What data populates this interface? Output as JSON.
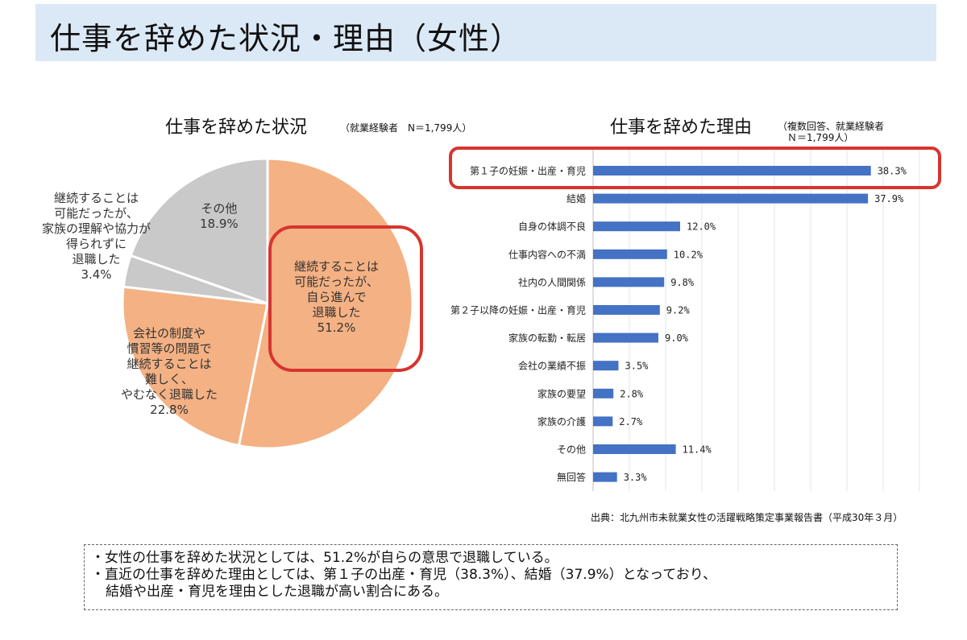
{
  "page_title": "仕事を辞めた状況・理由（女性）",
  "source": "出典：北九州市未就業女性の活躍戦略策定事業報告書（平成30年３月）",
  "summary": {
    "lines": [
      "・女性の仕事を辞めた状況としては、51.2%が自らの意思で退職している。",
      "・直近の仕事を辞めた理由としては、第１子の出産・育児（38.3%）、結婚（37.9%）となっており、",
      "結婚や出産・育児を理由とした退職が高い割合にある。"
    ]
  },
  "colors": {
    "header_bg": "#dbe8f5",
    "pie_orange": "#f4b183",
    "pie_gray": "#c9c9c9",
    "bar_blue": "#4472c4",
    "highlight_red": "#d63530"
  },
  "chart_data": [
    {
      "type": "pie",
      "title": "仕事を辞めた状況",
      "subtitle_lines": [
        "（就業経験者　N＝1,799人）"
      ],
      "slices": [
        {
          "label_lines": [
            "継続することは",
            "可能だったが、",
            "自ら進んで",
            "退職した",
            "51.2%"
          ],
          "value": 51.2,
          "color": "#f4b183"
        },
        {
          "label_lines": [
            "会社の制度や",
            "慣習等の問題で",
            "継続することは",
            "難しく、",
            "やむなく退職した",
            "22.8%"
          ],
          "value": 22.8,
          "color": "#f4b183"
        },
        {
          "label_lines": [
            "継続することは",
            "可能だったが、",
            "家族の理解や協力が",
            "得られずに",
            "退職した",
            "3.4%"
          ],
          "value": 3.4,
          "color": "#c9c9c9"
        },
        {
          "label_lines": [
            "その他",
            "18.9%"
          ],
          "value": 18.9,
          "color": "#c9c9c9"
        }
      ]
    },
    {
      "type": "bar",
      "orientation": "horizontal",
      "title": "仕事を辞めた理由",
      "subtitle_lines": [
        "（複数回答、就業経験者",
        "Ｎ＝1,799人）"
      ],
      "categories": [
        "第１子の妊娠・出産・育児",
        "結婚",
        "自身の体調不良",
        "仕事内容への不満",
        "社内の人間関係",
        "第２子以降の妊娠・出産・育児",
        "家族の転勤・転居",
        "会社の業績不振",
        "家族の要望",
        "家族の介護",
        "その他",
        "無回答"
      ],
      "values": [
        38.3,
        37.9,
        12.0,
        10.2,
        9.8,
        9.2,
        9.0,
        3.5,
        2.8,
        2.7,
        11.4,
        3.3
      ],
      "value_labels": [
        "38.3%",
        "37.9%",
        "12.0%",
        "10.2%",
        "9.8%",
        "9.2%",
        "9.0%",
        "3.5%",
        "2.8%",
        "2.7%",
        "11.4%",
        "3.3%"
      ],
      "xlim": [
        0,
        45
      ],
      "grid": true,
      "color": "#4472c4"
    }
  ]
}
